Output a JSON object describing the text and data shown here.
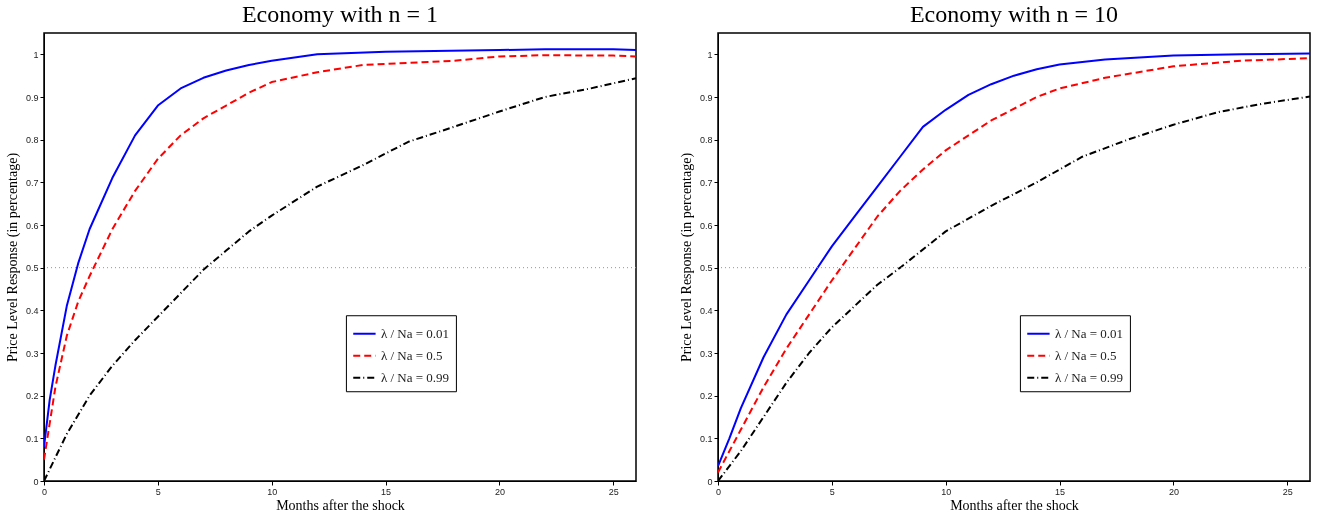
{
  "chart_data": [
    {
      "type": "line",
      "title": "Economy with n = 1",
      "xlabel": "Months after the shock",
      "ylabel": "Price Level Response (in percentage)",
      "xlim": [
        0,
        26
      ],
      "xticks": [
        0,
        5,
        10,
        15,
        20,
        25
      ],
      "ylim": [
        0,
        1.05
      ],
      "yticks": [
        0,
        0.1,
        0.2,
        0.3,
        0.4,
        0.5,
        0.6,
        0.7,
        0.8,
        0.9,
        1
      ],
      "legend": "right",
      "ref_lines": [
        {
          "axis": "y",
          "value": 0.5,
          "label": null,
          "color": "#ff6666",
          "line_style": "dotted"
        }
      ],
      "series": [
        {
          "name": "λ / Na = 0.01",
          "color": "#0000ff",
          "line_style": "solid",
          "x": [
            0,
            0.25,
            0.5,
            1,
            1.5,
            2,
            3,
            4,
            5,
            6,
            7,
            8,
            9,
            10,
            12,
            15,
            20,
            22,
            25,
            26
          ],
          "values": [
            0.08,
            0.19,
            0.27,
            0.41,
            0.51,
            0.59,
            0.71,
            0.81,
            0.88,
            0.92,
            0.945,
            0.962,
            0.975,
            0.985,
            1.0,
            1.006,
            1.01,
            1.012,
            1.012,
            1.01
          ]
        },
        {
          "name": "λ / Na = 0.5",
          "color": "#ff0000",
          "line_style": "dashed",
          "x": [
            0,
            0.5,
            1,
            1.5,
            2,
            3,
            4,
            5,
            6,
            7,
            8,
            9,
            10,
            12,
            14,
            16,
            18,
            20,
            22,
            25,
            26
          ],
          "values": [
            0.05,
            0.22,
            0.34,
            0.42,
            0.48,
            0.59,
            0.68,
            0.755,
            0.81,
            0.85,
            0.88,
            0.91,
            0.935,
            0.958,
            0.975,
            0.98,
            0.985,
            0.995,
            0.998,
            0.997,
            0.995
          ]
        },
        {
          "name": "λ / Na = 0.99",
          "color": "#000000",
          "line_style": "dashdot",
          "x": [
            0,
            1,
            2,
            3,
            4,
            5,
            6,
            7,
            8,
            9,
            10,
            12,
            14,
            16,
            18,
            20,
            22,
            24,
            26
          ],
          "values": [
            0.0,
            0.11,
            0.2,
            0.27,
            0.33,
            0.385,
            0.44,
            0.495,
            0.54,
            0.585,
            0.622,
            0.69,
            0.74,
            0.795,
            0.83,
            0.866,
            0.9,
            0.92,
            0.944
          ]
        }
      ]
    },
    {
      "type": "line",
      "title": "Economy with n = 10",
      "xlabel": "Months after the shock",
      "ylabel": "Price Level Response (in percentage)",
      "xlim": [
        0,
        26
      ],
      "xticks": [
        0,
        5,
        10,
        15,
        20,
        25
      ],
      "ylim": [
        0,
        1.05
      ],
      "yticks": [
        0,
        0.1,
        0.2,
        0.3,
        0.4,
        0.5,
        0.6,
        0.7,
        0.8,
        0.9,
        1
      ],
      "legend": "right",
      "ref_lines": [
        {
          "axis": "y",
          "value": 0.5,
          "label": null,
          "color": "#ff6666",
          "line_style": "dotted"
        }
      ],
      "series": [
        {
          "name": "λ / Na = 0.01",
          "color": "#0000ff",
          "line_style": "solid",
          "x": [
            0,
            0.5,
            1,
            2,
            3,
            4,
            5,
            6,
            7,
            8,
            9,
            10,
            11,
            12,
            13,
            14,
            15,
            17,
            20,
            23,
            26
          ],
          "values": [
            0.035,
            0.1,
            0.17,
            0.29,
            0.39,
            0.47,
            0.55,
            0.62,
            0.69,
            0.76,
            0.83,
            0.87,
            0.905,
            0.93,
            0.95,
            0.965,
            0.976,
            0.988,
            0.997,
            1.0,
            1.002
          ]
        },
        {
          "name": "λ / Na = 0.5",
          "color": "#ff0000",
          "line_style": "dashed",
          "x": [
            0,
            1,
            2,
            3,
            4,
            5,
            6,
            7,
            8,
            9,
            10,
            12,
            14,
            15,
            17,
            20,
            23,
            26
          ],
          "values": [
            0.02,
            0.12,
            0.22,
            0.31,
            0.39,
            0.47,
            0.545,
            0.62,
            0.68,
            0.73,
            0.775,
            0.845,
            0.9,
            0.92,
            0.945,
            0.972,
            0.985,
            0.991
          ]
        },
        {
          "name": "λ / Na = 0.99",
          "color": "#000000",
          "line_style": "dashdot",
          "x": [
            0,
            1,
            2,
            3,
            4,
            5,
            6,
            7,
            8,
            10,
            12,
            14,
            16,
            18,
            20,
            22,
            24,
            26
          ],
          "values": [
            0.0,
            0.07,
            0.15,
            0.23,
            0.3,
            0.36,
            0.41,
            0.46,
            0.5,
            0.585,
            0.645,
            0.7,
            0.76,
            0.8,
            0.835,
            0.865,
            0.885,
            0.901
          ]
        }
      ]
    }
  ]
}
